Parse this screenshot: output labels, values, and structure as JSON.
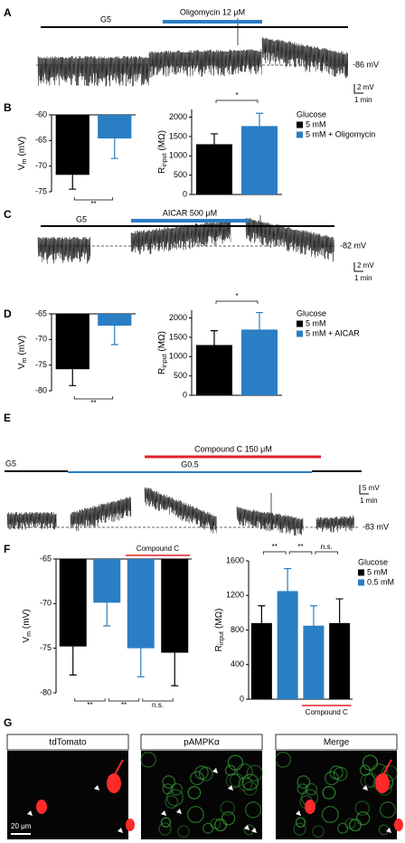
{
  "panel_labels": [
    "A",
    "B",
    "C",
    "D",
    "E",
    "F",
    "G"
  ],
  "traces": [
    {
      "bars": [
        {
          "text": "G5",
          "color": "#000000"
        },
        {
          "text": "Oligomycin 12 μM",
          "color": "#2a7ec4"
        }
      ],
      "baseline": "-86 mV",
      "scale_y": "2 mV",
      "scale_x": "1 min"
    },
    {
      "bars": [
        {
          "text": "G5",
          "color": "#000000"
        },
        {
          "text": "AICAR 500 μM",
          "color": "#2a7ec4"
        }
      ],
      "baseline": "-82 mV",
      "scale_y": "2 mV",
      "scale_x": "1 min"
    },
    {
      "bars": [
        {
          "text": "G5",
          "color": "#000000"
        },
        {
          "text": "G0.5",
          "color": "#2a7ec4"
        },
        {
          "text": "Compound C 150 μM",
          "color": "#e0202a"
        }
      ],
      "baseline": "-83 mV",
      "scale_y": "5 mV",
      "scale_x": "1 min"
    }
  ],
  "legends": [
    {
      "title": "Glucose",
      "entries": [
        {
          "name": "5 mM",
          "color": "#000000"
        },
        {
          "name": "5 mM + Oligomycin",
          "color": "#2a7ec4"
        }
      ]
    },
    {
      "title": "Glucose",
      "entries": [
        {
          "name": "5 mM",
          "color": "#000000"
        },
        {
          "name": "5 mM + AICAR",
          "color": "#2a7ec4"
        }
      ]
    },
    {
      "title": "Glucose",
      "entries": [
        {
          "name": "5 mM",
          "color": "#000000"
        },
        {
          "name": "0.5 mM",
          "color": "#2a7ec4"
        }
      ]
    }
  ],
  "chart_data": [
    {
      "type": "bar",
      "ylabel": {
        "main": "V",
        "sub": "m",
        "unit": "(mV)"
      },
      "ylim": [
        -75,
        -60
      ],
      "yticks": [
        -60,
        -65,
        -70,
        -75
      ],
      "values": [
        -71.7,
        -64.6
      ],
      "errors": [
        2.8,
        3.9
      ],
      "colors": [
        "#000000",
        "#2a7ec4"
      ],
      "significance": [
        "**"
      ]
    },
    {
      "type": "bar",
      "ylabel": {
        "main": "R",
        "sub": "input",
        "unit": "(MΩ)"
      },
      "ylim": [
        0,
        2200
      ],
      "yticks": [
        0,
        500,
        1000,
        1500,
        2000
      ],
      "values": [
        1300,
        1770
      ],
      "errors": [
        270,
        330
      ],
      "colors": [
        "#000000",
        "#2a7ec4"
      ],
      "significance": [
        "*"
      ]
    },
    {
      "type": "bar",
      "ylabel": {
        "main": "V",
        "sub": "m",
        "unit": "(mV)"
      },
      "ylim": [
        -80,
        -65
      ],
      "yticks": [
        -65,
        -70,
        -75,
        -80
      ],
      "values": [
        -75.8,
        -67.3
      ],
      "errors": [
        3.2,
        3.7
      ],
      "colors": [
        "#000000",
        "#2a7ec4"
      ],
      "significance": [
        "**"
      ]
    },
    {
      "type": "bar",
      "ylabel": {
        "main": "R",
        "sub": "input",
        "unit": "(MΩ)"
      },
      "ylim": [
        0,
        2200
      ],
      "yticks": [
        0,
        500,
        1000,
        1500,
        2000
      ],
      "values": [
        1300,
        1700
      ],
      "errors": [
        370,
        440
      ],
      "colors": [
        "#000000",
        "#2a7ec4"
      ],
      "significance": [
        "*"
      ]
    },
    {
      "type": "bar",
      "ylabel": {
        "main": "V",
        "sub": "m",
        "unit": "(mV)"
      },
      "ylim": [
        -80,
        -65
      ],
      "yticks": [
        -65,
        -70,
        -75,
        -80
      ],
      "values": [
        -74.8,
        -69.9,
        -75.0,
        -75.5
      ],
      "errors": [
        3.2,
        2.6,
        3.2,
        3.7
      ],
      "colors": [
        "#000000",
        "#2a7ec4",
        "#2a7ec4",
        "#000000"
      ],
      "significance": [
        "**",
        "**",
        "n.s."
      ],
      "annotation": "Compound C"
    },
    {
      "type": "bar",
      "ylabel": {
        "main": "R",
        "sub": "input",
        "unit": "(MΩ)"
      },
      "ylim": [
        0,
        1600
      ],
      "yticks": [
        0,
        400,
        800,
        1200,
        1600
      ],
      "values": [
        880,
        1250,
        850,
        880
      ],
      "errors": [
        200,
        260,
        230,
        280
      ],
      "colors": [
        "#000000",
        "#2a7ec4",
        "#2a7ec4",
        "#000000"
      ],
      "significance": [
        "**",
        "**",
        "n.s."
      ],
      "annotation": "Compound C"
    }
  ],
  "micrographs": {
    "panels": [
      "tdTomato",
      "pAMPKα",
      "Merge"
    ],
    "colors": [
      "#e0202a",
      "#3aa83a",
      "#000000"
    ],
    "scale": "20 μm"
  }
}
